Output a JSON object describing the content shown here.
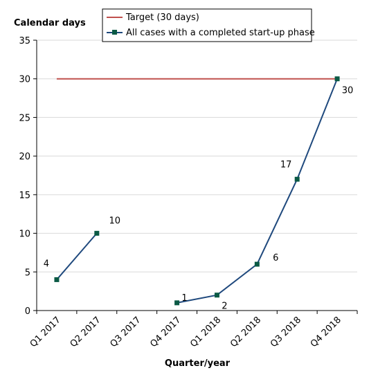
{
  "chart_data": {
    "type": "line",
    "title": "",
    "ylabel": "Calendar days",
    "xlabel": "Quarter/year",
    "categories": [
      "Q1 2017",
      "Q2 2017",
      "Q3 2017",
      "Q4 2017",
      "Q1 2018",
      "Q2 2018",
      "Q3 2018",
      "Q4 2018"
    ],
    "ylim": [
      0,
      35
    ],
    "yticks": [
      "0",
      "5",
      "10",
      "15",
      "20",
      "25",
      "30",
      "35"
    ],
    "grid": true,
    "legend_position": "top",
    "target": {
      "name": "Target (30 days)",
      "value": 30,
      "color": "#c0504d"
    },
    "series": [
      {
        "name": "All cases with a completed start-up phase",
        "color": "#1f497d",
        "marker_color": "#0b5a45",
        "values": [
          4,
          10,
          null,
          1,
          2,
          6,
          17,
          30
        ],
        "labels": [
          "4",
          "10",
          "",
          "1",
          "2",
          "6",
          "17",
          "30"
        ]
      }
    ]
  }
}
